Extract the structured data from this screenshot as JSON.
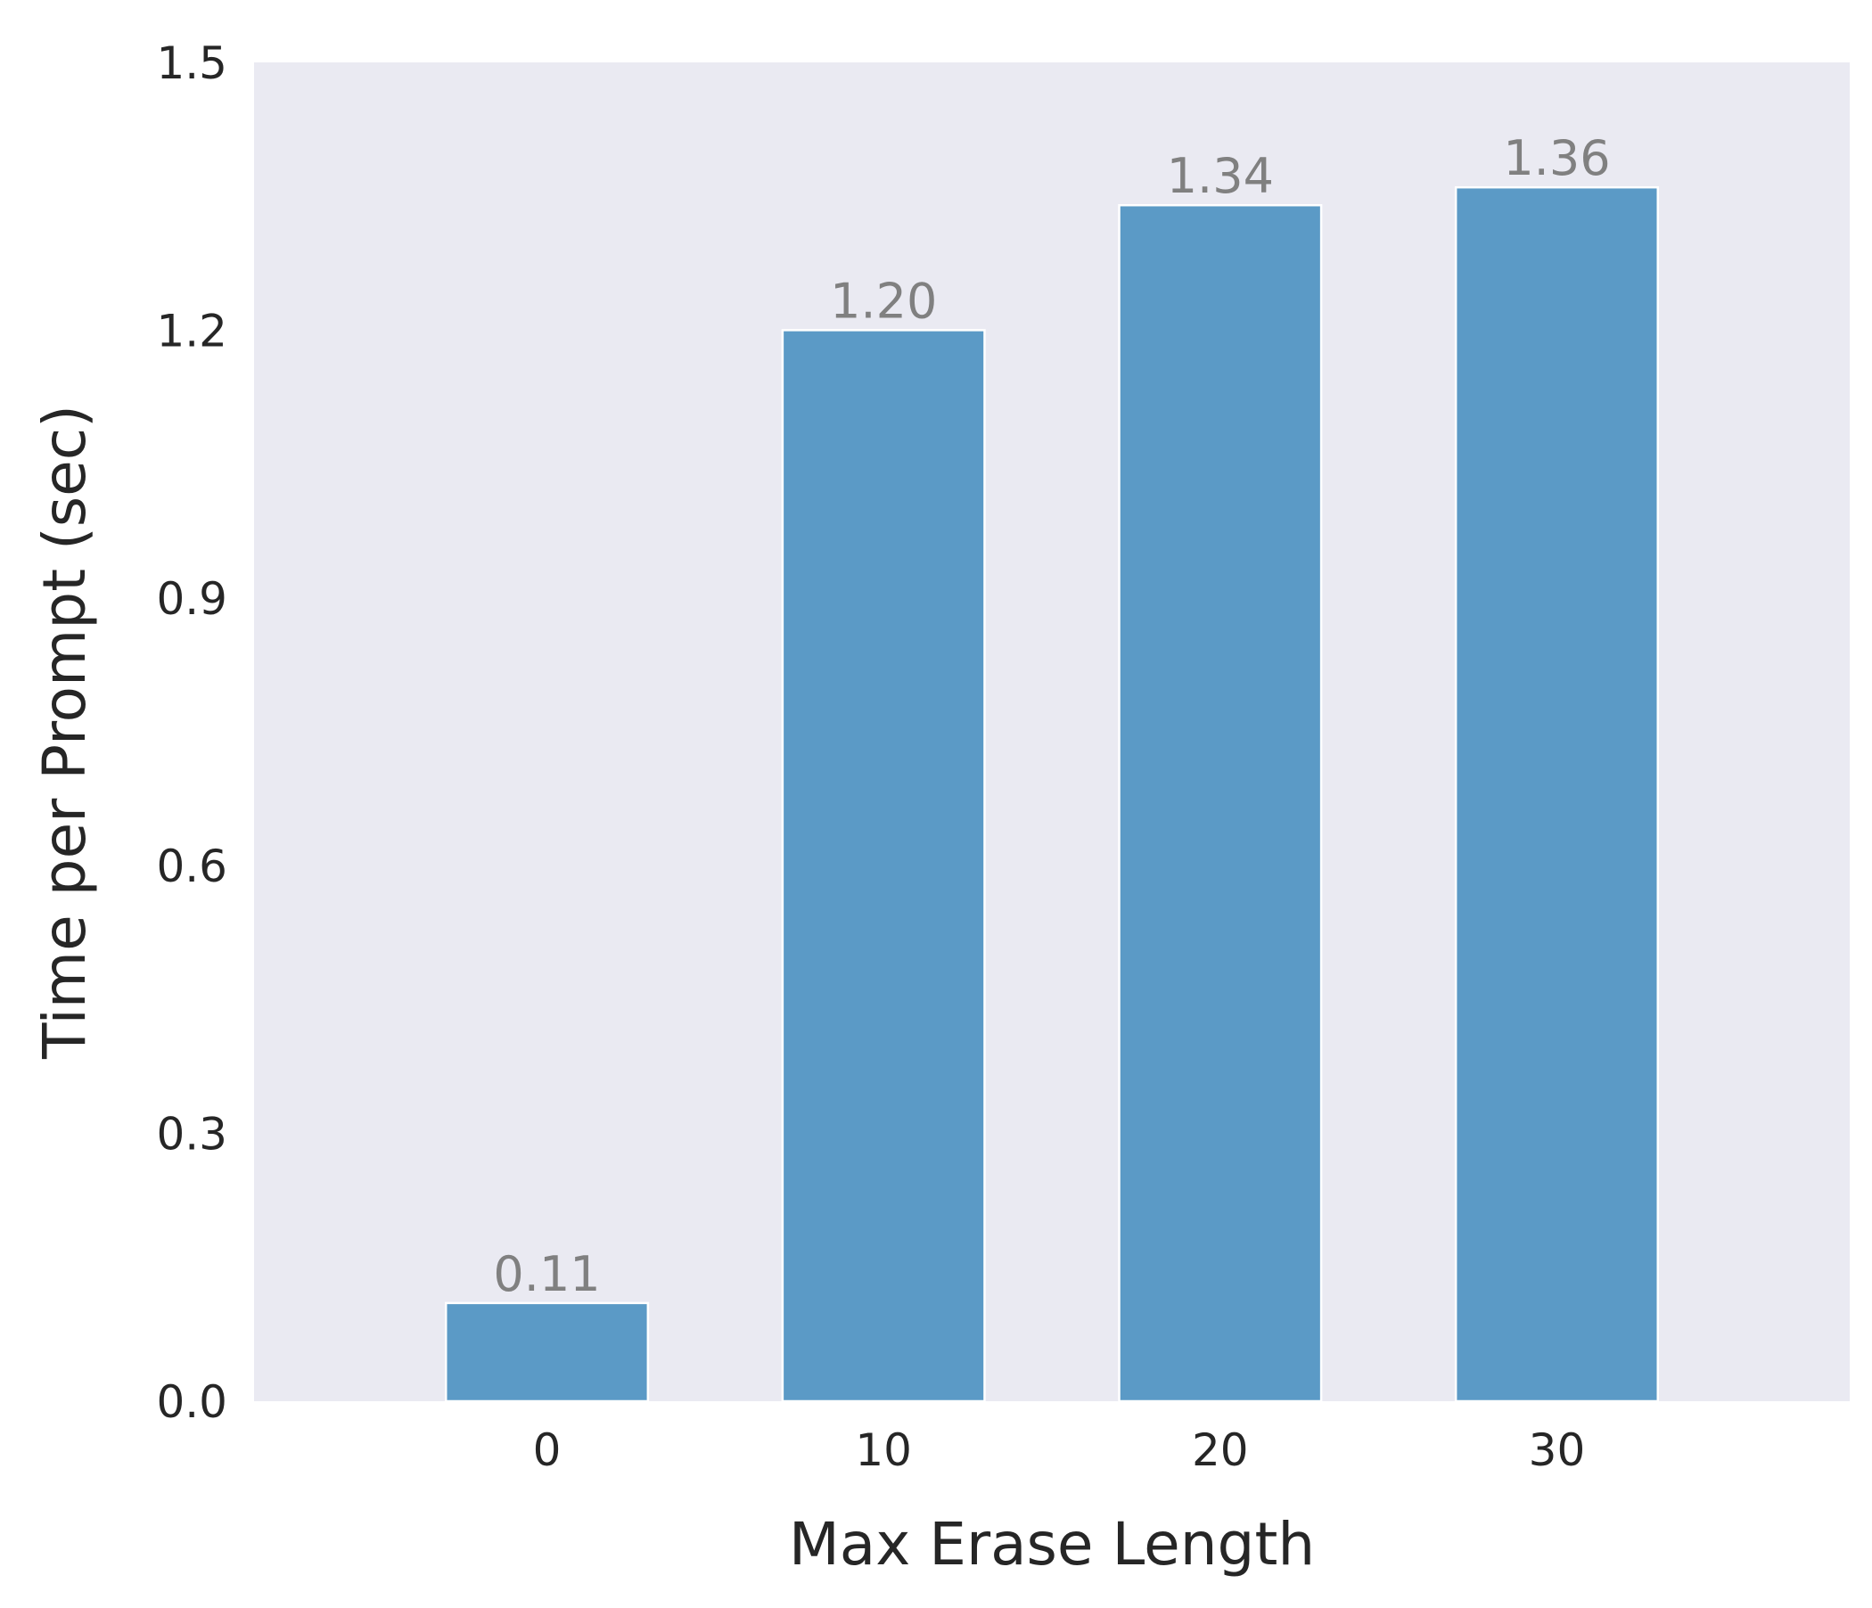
{
  "chart_data": {
    "type": "bar",
    "title": "",
    "xlabel": "Max Erase Length",
    "ylabel": "Time per Prompt (sec)",
    "categories": [
      "0",
      "10",
      "20",
      "30"
    ],
    "values": [
      0.11,
      1.2,
      1.34,
      1.36
    ],
    "value_labels": [
      "0.11",
      "1.20",
      "1.34",
      "1.36"
    ],
    "ylim": [
      0,
      1.5
    ],
    "yticks": [
      0.0,
      0.3,
      0.6,
      0.9,
      1.2,
      1.5
    ],
    "ytick_labels": [
      "0.0",
      "0.3",
      "0.6",
      "0.9",
      "1.2",
      "1.5"
    ],
    "grid": false,
    "legend": "none",
    "colors": {
      "bar": "#5b9ac6",
      "bar_edge": "#ffffff",
      "plot_background": "#eaeaf2",
      "tick_text": "#262626",
      "value_label_text": "#808080"
    }
  }
}
